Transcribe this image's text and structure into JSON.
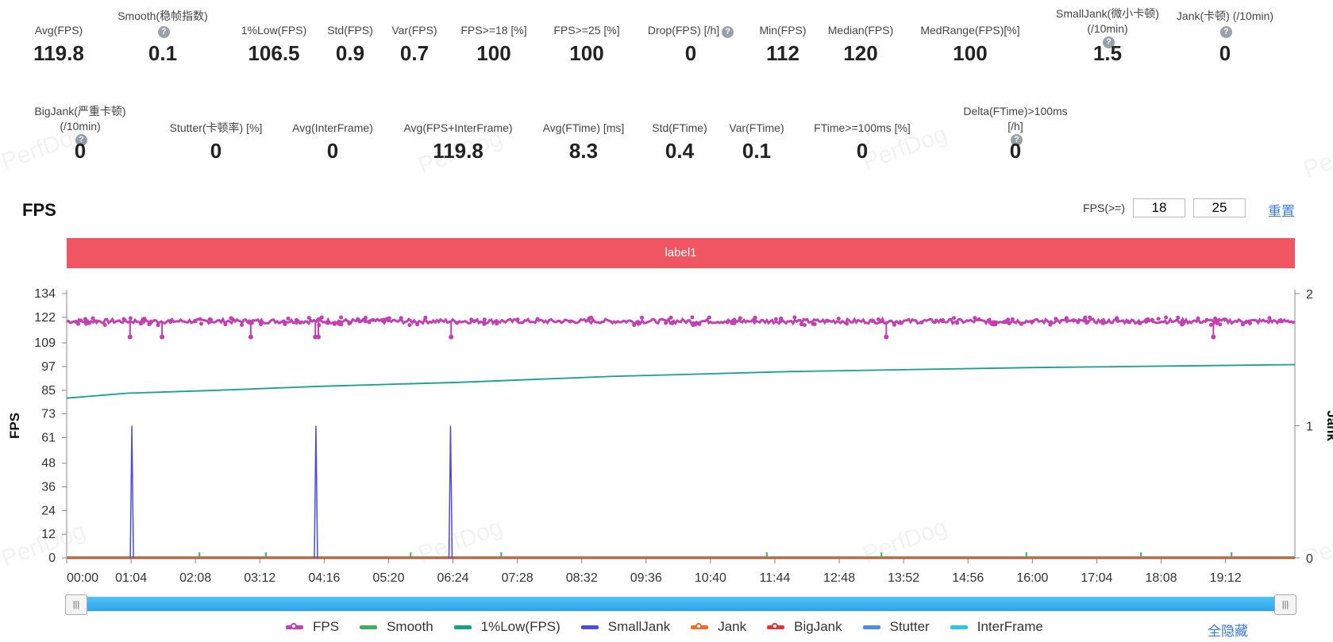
{
  "metrics_row1": [
    {
      "label": "Avg(FPS)",
      "value": "119.8"
    },
    {
      "label": "Smooth(稳帧指数)",
      "value": "0.1",
      "help": true
    },
    {
      "label": "1%Low(FPS)",
      "value": "106.5"
    },
    {
      "label": "Std(FPS)",
      "value": "0.9"
    },
    {
      "label": "Var(FPS)",
      "value": "0.7"
    },
    {
      "label": "FPS>=18 [%]",
      "value": "100"
    },
    {
      "label": "FPS>=25 [%]",
      "value": "100"
    },
    {
      "label": "Drop(FPS) [/h]",
      "value": "0",
      "help": true
    },
    {
      "label": "Min(FPS)",
      "value": "112"
    },
    {
      "label": "Median(FPS)",
      "value": "120"
    },
    {
      "label": "MedRange(FPS)[%]",
      "value": "100"
    },
    {
      "label": "SmallJank(微小卡顿) (/10min)",
      "value": "1.5",
      "help": true
    },
    {
      "label": "Jank(卡顿) (/10min)",
      "value": "0",
      "help": true
    }
  ],
  "metrics_row2": [
    {
      "label": "BigJank(严重卡顿) (/10min)",
      "value": "0",
      "help": true
    },
    {
      "label": "Stutter(卡顿率) [%]",
      "value": "0"
    },
    {
      "label": "Avg(InterFrame)",
      "value": "0"
    },
    {
      "label": "Avg(FPS+InterFrame)",
      "value": "119.8"
    },
    {
      "label": "Avg(FTime) [ms]",
      "value": "8.3"
    },
    {
      "label": "Std(FTime)",
      "value": "0.4"
    },
    {
      "label": "Var(FTime)",
      "value": "0.1"
    },
    {
      "label": "FTime>=100ms [%]",
      "value": "0"
    },
    {
      "label": "Delta(FTime)>100ms [/h]",
      "value": "0",
      "help": true
    }
  ],
  "watermark": "PerfDog",
  "chart_title": "FPS",
  "threshold_label": "FPS(>=)",
  "threshold_values": [
    "18",
    "25"
  ],
  "reset_label": "重置",
  "band_label": "label1",
  "hide_all_label": "全隐藏",
  "legend": [
    {
      "name": "FPS",
      "color": "#c43fb3",
      "dot": true
    },
    {
      "name": "Smooth",
      "color": "#3db05b",
      "dot": false
    },
    {
      "name": "1%Low(FPS)",
      "color": "#16a08f",
      "dot": false
    },
    {
      "name": "SmallJank",
      "color": "#4a4ae6",
      "dot": false
    },
    {
      "name": "Jank",
      "color": "#f26b26",
      "dot": true
    },
    {
      "name": "BigJank",
      "color": "#e03838",
      "dot": true
    },
    {
      "name": "Stutter",
      "color": "#4a8fe6",
      "dot": false
    },
    {
      "name": "InterFrame",
      "color": "#2cc7dd",
      "dot": false
    }
  ],
  "chart_data": {
    "type": "line",
    "title": "FPS",
    "ylabel": "FPS",
    "y2label": "Jank",
    "ylim": [
      0,
      134
    ],
    "y2lim": [
      0,
      2
    ],
    "y_ticks": [
      0,
      12,
      24,
      36,
      48,
      61,
      73,
      85,
      97,
      109,
      122,
      134
    ],
    "y2_ticks": [
      0,
      1,
      2
    ],
    "x_ticks": [
      "00:00",
      "01:04",
      "02:08",
      "03:12",
      "04:16",
      "05:20",
      "06:24",
      "07:28",
      "08:32",
      "09:36",
      "10:40",
      "11:44",
      "12:48",
      "13:52",
      "14:56",
      "16:00",
      "17:04",
      "18:08",
      "19:12"
    ],
    "duration_min": 20.35,
    "series": [
      {
        "name": "FPS",
        "axis": "left",
        "baseline": 120,
        "min": 112,
        "dips_at_min": [
          1.05,
          1.58,
          3.05,
          4.12,
          4.17,
          6.37,
          13.58,
          19.0
        ]
      },
      {
        "name": "1%Low(FPS)",
        "axis": "left",
        "x_min": [
          0,
          1.0,
          2.5,
          4.2,
          6.5,
          9.0,
          12.0,
          16.0,
          20.35
        ],
        "values": [
          81,
          83.5,
          85,
          87,
          89,
          92,
          94.5,
          96.5,
          98
        ]
      },
      {
        "name": "SmallJank",
        "axis": "right",
        "spikes_at_min": [
          1.08,
          4.13,
          6.36
        ],
        "spike_value": 1
      },
      {
        "name": "Smooth",
        "axis": "left",
        "values": [
          0
        ]
      },
      {
        "name": "Jank",
        "axis": "right",
        "values": [
          0
        ]
      },
      {
        "name": "BigJank",
        "axis": "right",
        "values": [
          0
        ]
      },
      {
        "name": "Stutter",
        "axis": "right",
        "values": [
          0
        ]
      },
      {
        "name": "InterFrame",
        "axis": "left",
        "values": [
          0
        ]
      }
    ],
    "grid": false,
    "legend_position": "bottom"
  }
}
